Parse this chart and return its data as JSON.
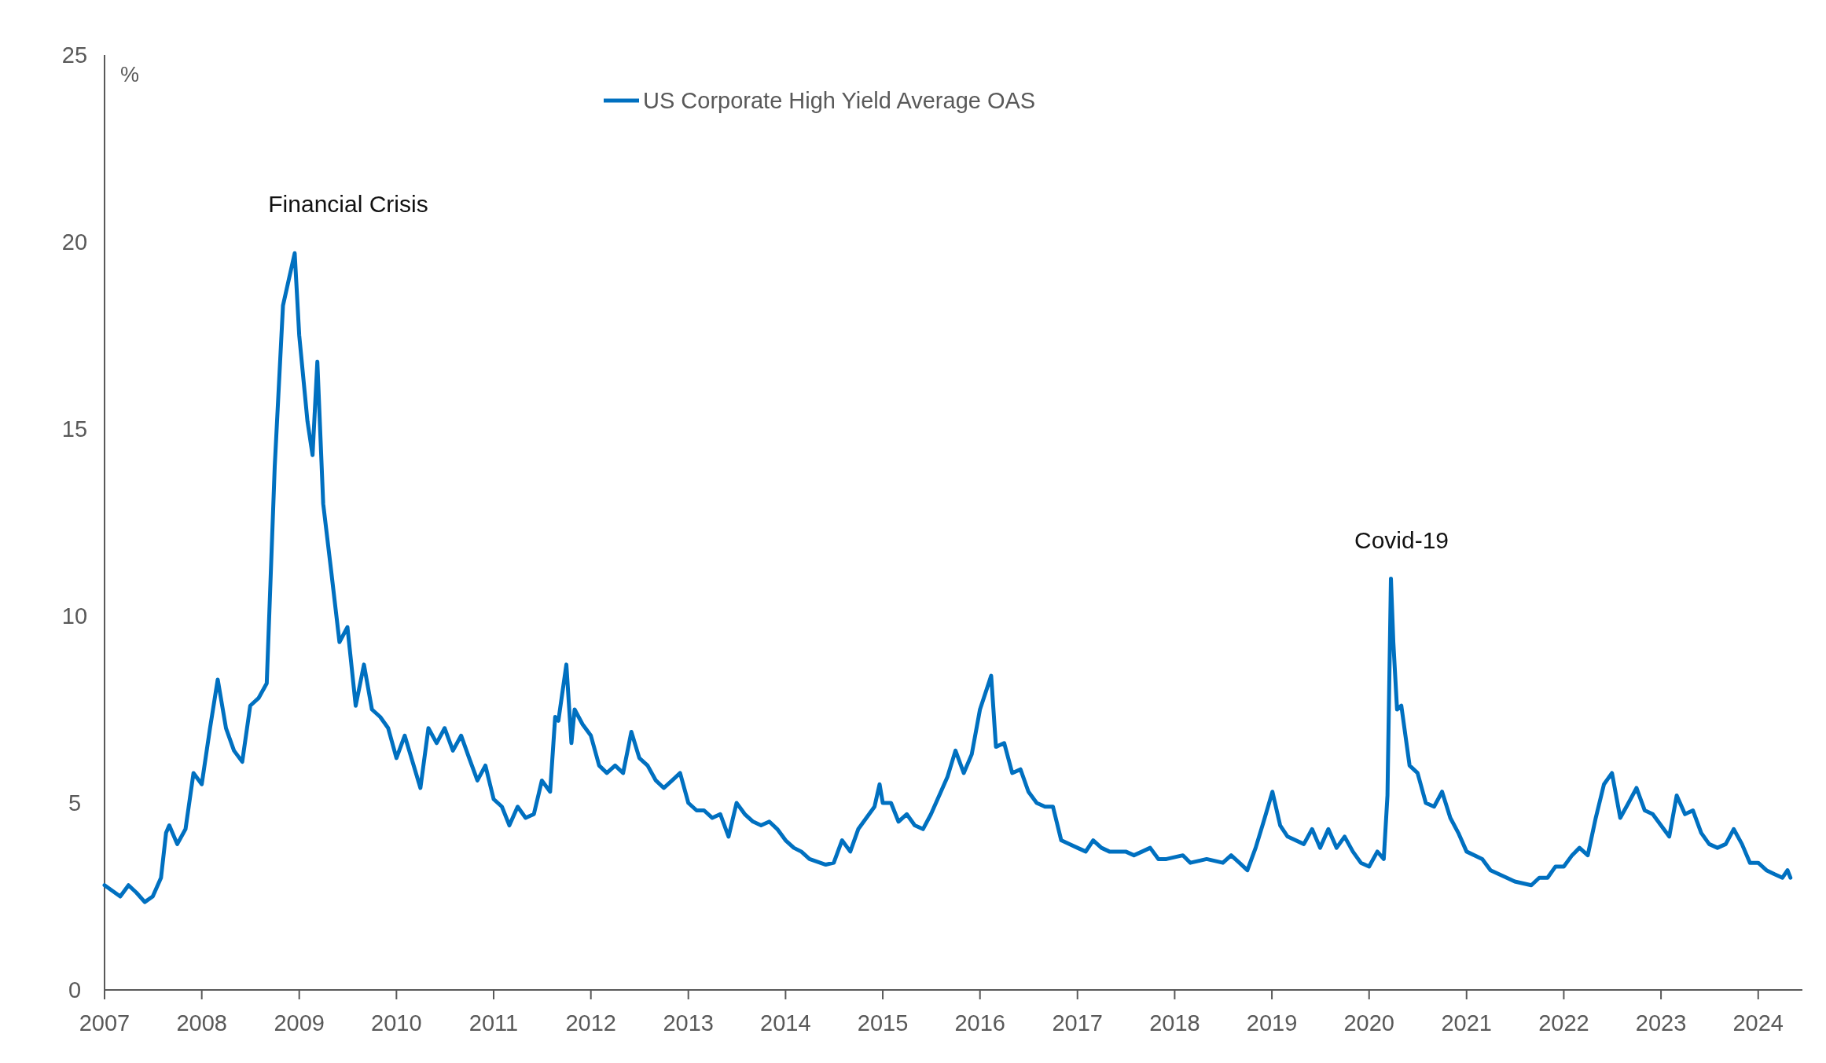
{
  "chart_data": {
    "type": "line",
    "ylabel": "%",
    "legend": "top",
    "grid": false,
    "line_style": "solid",
    "marker": "none",
    "xlim": [
      "2007-01-01",
      "2024-06-15"
    ],
    "xticks": [
      {
        "value": "2007-01-01",
        "label": "2007"
      },
      {
        "value": "2008-01-01",
        "label": "2008"
      },
      {
        "value": "2009-01-01",
        "label": "2009"
      },
      {
        "value": "2010-01-01",
        "label": "2010"
      },
      {
        "value": "2011-01-01",
        "label": "2011"
      },
      {
        "value": "2012-01-01",
        "label": "2012"
      },
      {
        "value": "2013-01-01",
        "label": "2013"
      },
      {
        "value": "2014-01-01",
        "label": "2014"
      },
      {
        "value": "2015-01-01",
        "label": "2015"
      },
      {
        "value": "2016-01-01",
        "label": "2016"
      },
      {
        "value": "2017-01-01",
        "label": "2017"
      },
      {
        "value": "2018-01-01",
        "label": "2018"
      },
      {
        "value": "2019-01-01",
        "label": "2019"
      },
      {
        "value": "2020-01-01",
        "label": "2020"
      },
      {
        "value": "2021-01-01",
        "label": "2021"
      },
      {
        "value": "2022-01-01",
        "label": "2022"
      },
      {
        "value": "2023-01-01",
        "label": "2023"
      },
      {
        "value": "2024-01-01",
        "label": "2024"
      }
    ],
    "ylim": [
      0,
      25
    ],
    "yticks": [
      0,
      5,
      10,
      15,
      20,
      25
    ],
    "annotations": [
      "Financial Crisis",
      "Covid-19"
    ],
    "x": [
      "2007-01-01",
      "2007-03-01",
      "2007-04-01",
      "2007-05-01",
      "2007-06-01",
      "2007-07-01",
      "2007-08-01",
      "2007-08-20",
      "2007-09-01",
      "2007-10-01",
      "2007-11-01",
      "2007-12-01",
      "2008-01-01",
      "2008-02-01",
      "2008-03-01",
      "2008-04-01",
      "2008-05-01",
      "2008-06-01",
      "2008-07-01",
      "2008-08-01",
      "2008-09-01",
      "2008-10-01",
      "2008-11-01",
      "2008-12-15",
      "2009-01-01",
      "2009-02-01",
      "2009-02-20",
      "2009-03-10",
      "2009-04-01",
      "2009-05-01",
      "2009-06-01",
      "2009-07-01",
      "2009-08-01",
      "2009-09-01",
      "2009-10-01",
      "2009-11-01",
      "2009-12-01",
      "2010-01-01",
      "2010-02-01",
      "2010-04-01",
      "2010-05-01",
      "2010-06-01",
      "2010-07-01",
      "2010-08-01",
      "2010-09-01",
      "2010-10-01",
      "2010-11-01",
      "2010-12-01",
      "2011-01-01",
      "2011-02-01",
      "2011-03-01",
      "2011-04-01",
      "2011-05-01",
      "2011-06-01",
      "2011-07-01",
      "2011-08-01",
      "2011-08-20",
      "2011-09-01",
      "2011-10-01",
      "2011-10-20",
      "2011-11-01",
      "2011-12-01",
      "2012-01-01",
      "2012-02-01",
      "2012-03-01",
      "2012-04-01",
      "2012-05-01",
      "2012-06-01",
      "2012-07-01",
      "2012-08-01",
      "2012-09-01",
      "2012-10-01",
      "2012-11-01",
      "2012-12-01",
      "2013-01-01",
      "2013-02-01",
      "2013-03-01",
      "2013-04-01",
      "2013-05-01",
      "2013-06-01",
      "2013-07-01",
      "2013-08-01",
      "2013-09-01",
      "2013-10-01",
      "2013-11-01",
      "2013-12-01",
      "2014-01-01",
      "2014-02-01",
      "2014-03-01",
      "2014-04-01",
      "2014-06-01",
      "2014-07-01",
      "2014-08-01",
      "2014-09-01",
      "2014-10-01",
      "2014-12-01",
      "2014-12-20",
      "2015-01-01",
      "2015-02-01",
      "2015-03-01",
      "2015-04-01",
      "2015-05-01",
      "2015-06-01",
      "2015-07-01",
      "2015-08-01",
      "2015-09-01",
      "2015-10-01",
      "2015-11-01",
      "2015-12-01",
      "2016-01-01",
      "2016-02-12",
      "2016-03-01",
      "2016-04-01",
      "2016-05-01",
      "2016-06-01",
      "2016-07-01",
      "2016-08-01",
      "2016-09-01",
      "2016-10-01",
      "2016-11-01",
      "2016-12-01",
      "2017-01-01",
      "2017-02-01",
      "2017-03-01",
      "2017-04-01",
      "2017-05-01",
      "2017-06-01",
      "2017-07-01",
      "2017-08-01",
      "2017-09-01",
      "2017-10-01",
      "2017-11-01",
      "2017-12-01",
      "2018-02-01",
      "2018-03-01",
      "2018-05-01",
      "2018-07-01",
      "2018-08-01",
      "2018-09-01",
      "2018-10-01",
      "2018-11-01",
      "2018-12-01",
      "2019-01-03",
      "2019-02-01",
      "2019-03-01",
      "2019-05-01",
      "2019-06-01",
      "2019-07-01",
      "2019-08-01",
      "2019-09-01",
      "2019-10-01",
      "2019-11-01",
      "2019-12-01",
      "2020-01-01",
      "2020-02-01",
      "2020-02-25",
      "2020-03-10",
      "2020-03-23",
      "2020-04-01",
      "2020-04-15",
      "2020-05-01",
      "2020-06-01",
      "2020-07-01",
      "2020-08-01",
      "2020-09-01",
      "2020-10-01",
      "2020-11-01",
      "2020-12-01",
      "2021-01-01",
      "2021-03-01",
      "2021-04-01",
      "2021-06-01",
      "2021-07-01",
      "2021-09-01",
      "2021-10-01",
      "2021-11-01",
      "2021-12-01",
      "2022-01-01",
      "2022-02-01",
      "2022-03-01",
      "2022-04-01",
      "2022-05-01",
      "2022-06-01",
      "2022-07-01",
      "2022-08-01",
      "2022-09-01",
      "2022-10-01",
      "2022-11-01",
      "2022-12-01",
      "2023-01-01",
      "2023-02-01",
      "2023-03-01",
      "2023-04-01",
      "2023-05-01",
      "2023-06-01",
      "2023-07-01",
      "2023-08-01",
      "2023-09-01",
      "2023-10-01",
      "2023-11-01",
      "2023-12-01",
      "2024-01-01",
      "2024-02-01",
      "2024-03-01",
      "2024-04-01",
      "2024-04-20",
      "2024-05-01"
    ],
    "series": [
      {
        "name": "US Corporate High Yield Average OAS",
        "color": "#0070c0",
        "values": [
          2.8,
          2.5,
          2.8,
          2.6,
          2.35,
          2.5,
          3.0,
          4.2,
          4.4,
          3.9,
          4.3,
          5.8,
          5.5,
          7.0,
          8.3,
          7.0,
          6.4,
          6.1,
          7.6,
          7.8,
          8.2,
          14.0,
          18.3,
          19.7,
          17.5,
          15.2,
          14.3,
          16.8,
          13.0,
          11.2,
          9.3,
          9.7,
          7.6,
          8.7,
          7.5,
          7.3,
          7.0,
          6.2,
          6.8,
          5.4,
          7.0,
          6.6,
          7.0,
          6.4,
          6.8,
          6.2,
          5.6,
          6.0,
          5.1,
          4.9,
          4.4,
          4.9,
          4.6,
          4.7,
          5.6,
          5.3,
          7.3,
          7.2,
          8.7,
          6.6,
          7.5,
          7.1,
          6.8,
          6.0,
          5.8,
          6.0,
          5.8,
          6.9,
          6.2,
          6.0,
          5.6,
          5.4,
          5.6,
          5.8,
          5.0,
          4.8,
          4.8,
          4.6,
          4.7,
          4.1,
          5.0,
          4.7,
          4.5,
          4.4,
          4.5,
          4.3,
          4.0,
          3.8,
          3.7,
          3.5,
          3.35,
          3.4,
          4.0,
          3.7,
          4.3,
          4.9,
          5.5,
          5.0,
          5.0,
          4.5,
          4.7,
          4.4,
          4.3,
          4.7,
          5.2,
          5.7,
          6.4,
          5.8,
          6.3,
          7.5,
          8.4,
          6.5,
          6.6,
          5.8,
          5.9,
          5.3,
          5.0,
          4.9,
          4.9,
          4.0,
          3.9,
          3.8,
          3.7,
          4.0,
          3.8,
          3.7,
          3.7,
          3.7,
          3.6,
          3.7,
          3.8,
          3.5,
          3.5,
          3.6,
          3.4,
          3.5,
          3.4,
          3.6,
          3.4,
          3.2,
          3.8,
          4.5,
          5.3,
          4.4,
          4.1,
          3.9,
          4.3,
          3.8,
          4.3,
          3.8,
          4.1,
          3.7,
          3.4,
          3.3,
          3.7,
          3.5,
          5.2,
          11.0,
          9.3,
          7.5,
          7.6,
          6.0,
          5.8,
          5.0,
          4.9,
          5.3,
          4.6,
          4.2,
          3.7,
          3.5,
          3.2,
          3.0,
          2.9,
          2.8,
          3.0,
          3.0,
          3.3,
          3.3,
          3.6,
          3.8,
          3.6,
          4.6,
          5.5,
          5.8,
          4.6,
          5.0,
          5.4,
          4.8,
          4.7,
          4.4,
          4.1,
          5.2,
          4.7,
          4.8,
          4.2,
          3.9,
          3.8,
          3.9,
          4.3,
          3.9,
          3.4,
          3.4,
          3.2,
          3.1,
          3.0,
          3.2,
          3.0
        ]
      }
    ]
  }
}
